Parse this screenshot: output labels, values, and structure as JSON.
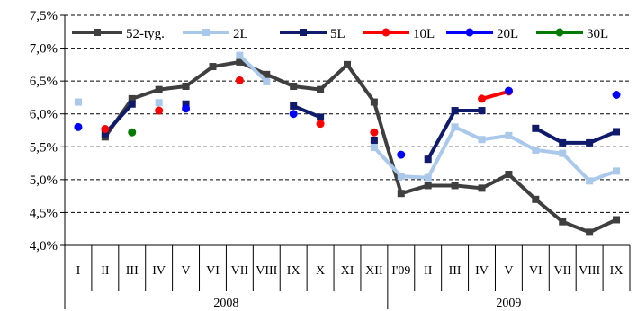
{
  "chart_data": {
    "type": "line",
    "title": "",
    "xlabel": "",
    "ylabel": "",
    "ylim": [
      4.0,
      7.5
    ],
    "y_ticks": [
      "4,0%",
      "4,5%",
      "5,0%",
      "5,5%",
      "6,0%",
      "6,5%",
      "7,0%",
      "7,5%"
    ],
    "y_tick_values": [
      4.0,
      4.5,
      5.0,
      5.5,
      6.0,
      6.5,
      7.0,
      7.5
    ],
    "gridlines": "dashed-horizontal",
    "legend_position": "top",
    "categories": [
      "I",
      "II",
      "III",
      "IV",
      "V",
      "VI",
      "VII",
      "VIII",
      "IX",
      "X",
      "XI",
      "XII",
      "I'09",
      "II",
      "III",
      "IV",
      "V",
      "VI",
      "VII",
      "VIII",
      "IX"
    ],
    "year_groups": [
      {
        "label": "2008",
        "start": 0,
        "end": 11
      },
      {
        "label": "2009",
        "start": 12,
        "end": 20
      }
    ],
    "series": [
      {
        "name": "52-tyg.",
        "color": "#3f3f3f",
        "marker": "square",
        "line": true,
        "values": [
          null,
          5.65,
          6.23,
          6.37,
          6.42,
          6.72,
          6.79,
          6.6,
          6.42,
          6.37,
          6.75,
          6.18,
          4.79,
          4.91,
          4.91,
          4.87,
          5.08,
          4.7,
          4.36,
          4.2,
          4.39
        ]
      },
      {
        "name": "2L",
        "color": "#a9c8ea",
        "marker": "square",
        "line": true,
        "values": [
          6.18,
          null,
          null,
          6.17,
          null,
          null,
          6.89,
          6.49,
          null,
          null,
          null,
          5.49,
          5.05,
          5.03,
          5.8,
          5.61,
          5.67,
          5.45,
          5.4,
          4.98,
          5.13
        ]
      },
      {
        "name": "5L",
        "color": "#0f1a6b",
        "marker": "square",
        "line": true,
        "values": [
          null,
          5.7,
          6.15,
          null,
          6.15,
          null,
          null,
          null,
          6.12,
          5.95,
          null,
          5.6,
          null,
          5.31,
          6.05,
          6.05,
          null,
          5.78,
          5.56,
          5.56,
          5.73
        ]
      },
      {
        "name": "10L",
        "color": "#ff0000",
        "marker": "circle",
        "line": true,
        "values": [
          null,
          5.77,
          null,
          6.05,
          null,
          null,
          6.51,
          null,
          null,
          5.85,
          null,
          5.72,
          null,
          null,
          null,
          6.23,
          6.34,
          null,
          null,
          null,
          null
        ]
      },
      {
        "name": "20L",
        "color": "#0000ff",
        "marker": "circle",
        "line": true,
        "values": [
          5.8,
          null,
          null,
          null,
          6.08,
          null,
          null,
          null,
          6.0,
          null,
          null,
          null,
          5.38,
          null,
          null,
          null,
          6.35,
          null,
          null,
          null,
          6.29
        ]
      },
      {
        "name": "30L",
        "color": "#007a00",
        "marker": "circle",
        "line": true,
        "values": [
          null,
          null,
          5.72,
          null,
          null,
          null,
          null,
          null,
          null,
          null,
          null,
          null,
          null,
          null,
          null,
          null,
          null,
          null,
          null,
          null,
          null
        ]
      }
    ]
  }
}
